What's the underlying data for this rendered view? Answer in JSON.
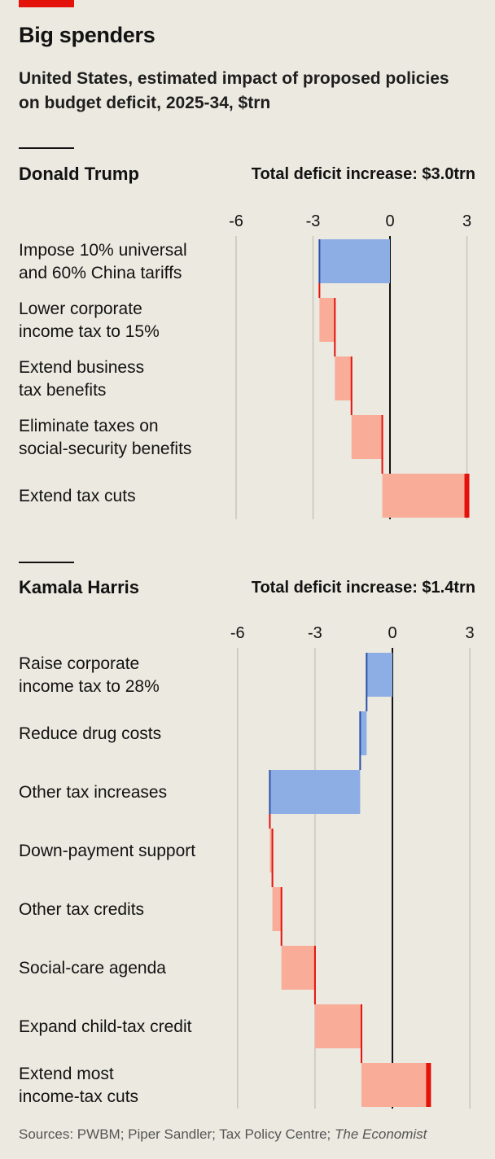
{
  "header": {
    "title": "Big spenders",
    "subtitle": "United States, estimated impact of proposed policies on budget deficit, 2025-34, $trn"
  },
  "source": {
    "text": "Sources: PWBM; Piper Sandler; Tax Policy Centre; ",
    "publication": "The Economist"
  },
  "colors": {
    "decrease_fill": "#8daee4",
    "decrease_edge": "#2a4fa8",
    "increase_fill": "#f9ad98",
    "increase_edge": "#e3120b",
    "grid": "#c9c6bb",
    "zero": "#121212"
  },
  "chart_data": [
    {
      "type": "waterfall",
      "name": "Donald Trump",
      "total_label": "Total deficit increase: $3.0trn",
      "xlim": [
        -6,
        3
      ],
      "ticks": [
        -6,
        -3,
        0,
        3
      ],
      "tick_labels": [
        "-6",
        "-3",
        "0",
        "3"
      ],
      "items": [
        {
          "label": [
            "Impose 10% universal",
            "and 60% China tariffs"
          ],
          "value": -2.75
        },
        {
          "label": [
            "Lower corporate",
            "income tax to 15%"
          ],
          "value": 0.6
        },
        {
          "label": [
            "Extend business",
            "tax benefits"
          ],
          "value": 0.65
        },
        {
          "label": [
            "Eliminate taxes on",
            "social-security benefits"
          ],
          "value": 1.2
        },
        {
          "label": [
            "Extend tax cuts"
          ],
          "value": 3.3
        }
      ],
      "total": 3.0
    },
    {
      "type": "waterfall",
      "name": "Kamala Harris",
      "total_label": "Total deficit increase: $1.4trn",
      "xlim": [
        -6,
        3
      ],
      "ticks": [
        -6,
        -3,
        0,
        3
      ],
      "tick_labels": [
        "-6",
        "-3",
        "0",
        "3"
      ],
      "items": [
        {
          "label": [
            "Raise corporate",
            "income tax to 28%"
          ],
          "value": -1.0
        },
        {
          "label": [
            "Reduce drug costs"
          ],
          "value": -0.25
        },
        {
          "label": [
            "Other tax increases"
          ],
          "value": -3.5
        },
        {
          "label": [
            "Down-payment support"
          ],
          "value": 0.1
        },
        {
          "label": [
            "Other tax credits"
          ],
          "value": 0.35
        },
        {
          "label": [
            "Social-care agenda"
          ],
          "value": 1.3
        },
        {
          "label": [
            "Expand child-tax credit"
          ],
          "value": 1.8
        },
        {
          "label": [
            "Extend most",
            "income-tax cuts"
          ],
          "value": 2.6
        }
      ],
      "total": 1.4
    }
  ]
}
